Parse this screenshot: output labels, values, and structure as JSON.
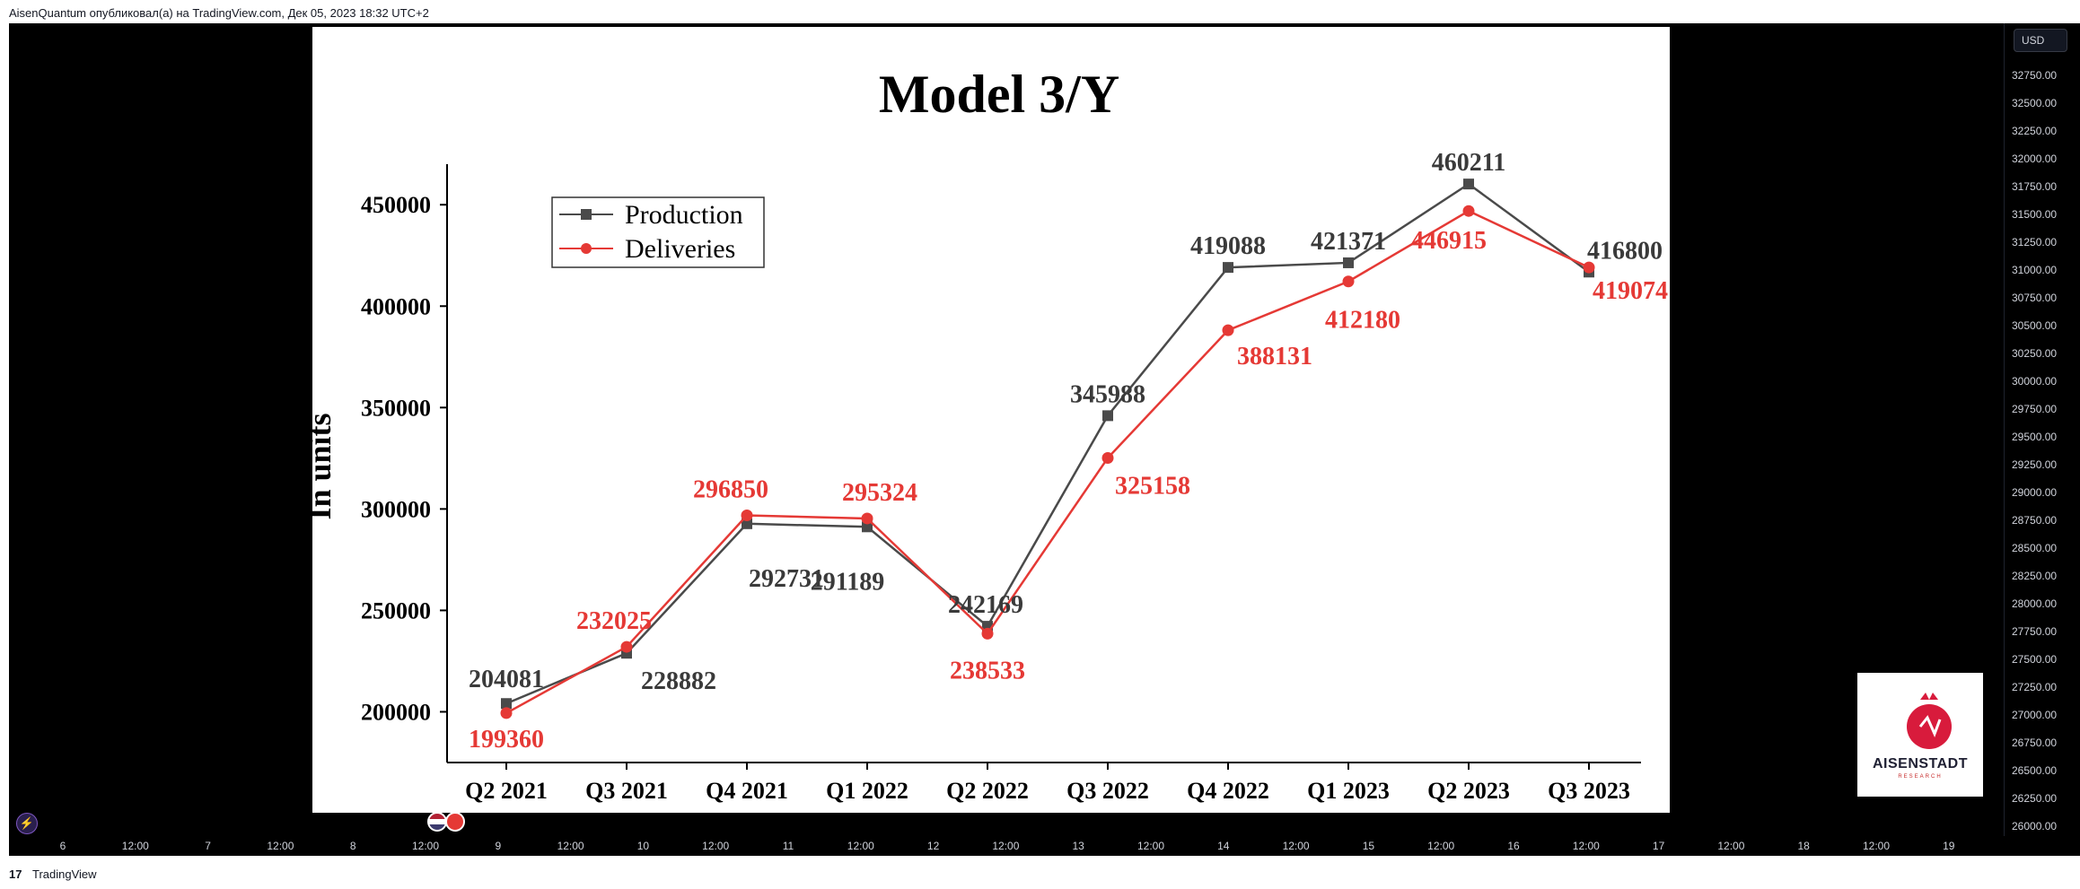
{
  "header": {
    "publisher_line": "AisenQuantum опубликовал(а) на TradingView.com, Дек 05, 2023 18:32 UTC+2"
  },
  "price_scale": {
    "currency_button": "USD",
    "labels": [
      "32750.00",
      "32500.00",
      "32250.00",
      "32000.00",
      "31750.00",
      "31500.00",
      "31250.00",
      "31000.00",
      "30750.00",
      "30500.00",
      "30250.00",
      "30000.00",
      "29750.00",
      "29500.00",
      "29250.00",
      "29000.00",
      "28750.00",
      "28500.00",
      "28250.00",
      "28000.00",
      "27750.00",
      "27500.00",
      "27250.00",
      "27000.00",
      "26750.00",
      "26500.00",
      "26250.00",
      "26000.00"
    ]
  },
  "time_axis": {
    "labels": [
      "6",
      "12:00",
      "7",
      "12:00",
      "8",
      "12:00",
      "9",
      "12:00",
      "10",
      "12:00",
      "11",
      "12:00",
      "12",
      "12:00",
      "13",
      "12:00",
      "14",
      "12:00",
      "15",
      "12:00",
      "16",
      "12:00",
      "17",
      "12:00",
      "18",
      "12:00",
      "19"
    ]
  },
  "footer": {
    "logo_mark": "17",
    "brand": "TradingView"
  },
  "icons": {
    "bolt": "lightning-icon",
    "flags": [
      "us-flag-icon",
      "eu-flag-icon"
    ]
  },
  "watermark": {
    "brand": "AISENSTADT",
    "sub": "RESEARCH"
  },
  "chart_data": {
    "type": "line",
    "title": "Model 3/Y",
    "ylabel": "In units",
    "xlabel": "",
    "categories": [
      "Q2 2021",
      "Q3 2021",
      "Q4 2021",
      "Q1 2022",
      "Q2 2022",
      "Q3 2022",
      "Q4 2022",
      "Q1 2023",
      "Q2 2023",
      "Q3 2023"
    ],
    "ylim": [
      175000,
      470000
    ],
    "yticks": [
      200000,
      250000,
      300000,
      350000,
      400000,
      450000
    ],
    "ytick_labels": [
      "200000",
      "250000",
      "300000",
      "350000",
      "400000",
      "450000"
    ],
    "legend_position": "top-left",
    "series": [
      {
        "name": "Production",
        "color": "#4a4a4a",
        "marker": "square",
        "values": [
          204081,
          228882,
          292731,
          291189,
          242169,
          345988,
          419088,
          421371,
          460211,
          416800
        ],
        "labels": [
          "204081",
          "228882",
          "292731",
          "291189",
          "242169",
          "345988",
          "419088",
          "421371",
          "460211",
          "416800"
        ]
      },
      {
        "name": "Deliveries",
        "color": "#e53935",
        "marker": "circle",
        "values": [
          199360,
          232025,
          296850,
          295324,
          238533,
          325158,
          388131,
          412180,
          446915,
          419074
        ],
        "labels": [
          "199360",
          "232025",
          "296850",
          "295324",
          "238533",
          "325158",
          "388131",
          "412180",
          "446915",
          "419074"
        ]
      }
    ]
  }
}
